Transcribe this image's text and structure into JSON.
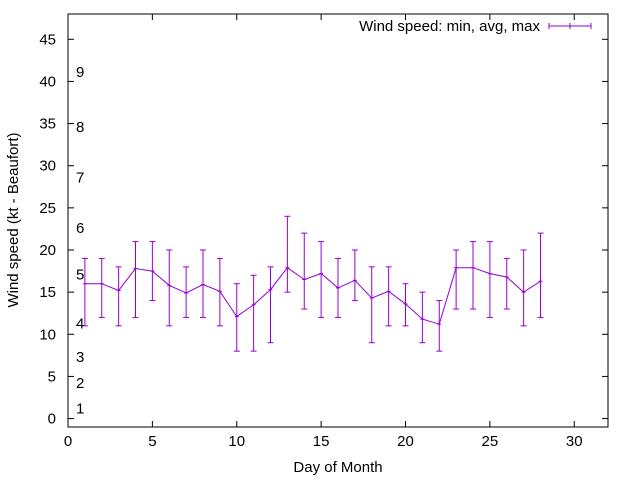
{
  "chart_data": {
    "type": "line",
    "xlabel": "Day of Month",
    "ylabel": "Wind speed (kt - Beaufort)",
    "xlim": [
      0,
      32
    ],
    "ylim": [
      -1,
      48
    ],
    "xticks": [
      0,
      5,
      10,
      15,
      20,
      25,
      30
    ],
    "yticks": [
      0,
      5,
      10,
      15,
      20,
      25,
      30,
      35,
      40,
      45
    ],
    "grid": false,
    "legend_position": "top-right",
    "series_color": "#9400d3",
    "series": [
      {
        "name": "Wind speed: min, avg, max",
        "x": [
          1,
          2,
          3,
          4,
          5,
          6,
          7,
          8,
          9,
          10,
          11,
          12,
          13,
          14,
          15,
          16,
          17,
          18,
          19,
          20,
          21,
          22,
          23,
          24,
          25,
          26,
          27,
          28
        ],
        "avg": [
          16,
          16,
          15.2,
          17.8,
          17.5,
          15.8,
          14.9,
          15.9,
          15.1,
          12.1,
          13.5,
          15.3,
          17.9,
          16.5,
          17.2,
          15.5,
          16.4,
          14.3,
          15.1,
          13.6,
          11.8,
          11.2,
          17.9,
          17.9,
          17.2,
          16.8,
          15,
          16.3
        ],
        "min": [
          11,
          12,
          11,
          12,
          14,
          11,
          12,
          12,
          11,
          8,
          8,
          9,
          15,
          13,
          12,
          12,
          14,
          9,
          11,
          11,
          9,
          8,
          13,
          13,
          12,
          13,
          11,
          12
        ],
        "max": [
          19,
          19,
          18,
          21,
          21,
          20,
          18,
          20,
          19,
          16,
          17,
          18,
          24,
          22,
          21,
          19,
          20,
          18,
          18,
          16,
          15,
          14,
          20,
          21,
          21,
          19,
          20,
          22
        ]
      }
    ],
    "annotations": [
      {
        "text": "1",
        "y": 1.2
      },
      {
        "text": "2",
        "y": 4.2
      },
      {
        "text": "3",
        "y": 7.3
      },
      {
        "text": "4",
        "y": 11.3
      },
      {
        "text": "5",
        "y": 17.1
      },
      {
        "text": "6",
        "y": 22.6
      },
      {
        "text": "7",
        "y": 28.6
      },
      {
        "text": "8",
        "y": 34.6
      },
      {
        "text": "9",
        "y": 41.1
      }
    ]
  }
}
